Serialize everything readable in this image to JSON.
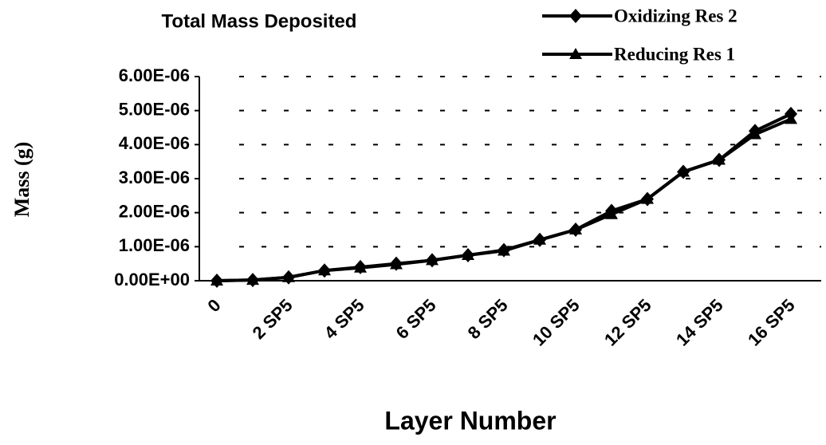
{
  "chart_data": {
    "type": "line",
    "title": "Total Mass Deposited",
    "x_label": "Layer Number",
    "y_label": "Mass (g)",
    "categories": [
      "0",
      null,
      "2 SP5",
      null,
      "4 SP5",
      null,
      "6 SP5",
      null,
      "8 SP5",
      null,
      "10 SP5",
      null,
      "12 SP5",
      null,
      "14 SP5",
      null,
      "16 SP5"
    ],
    "series": [
      {
        "name": "Oxidizing Res 2",
        "color": "#000000",
        "marker": "diamond",
        "values": [
          0,
          2e-08,
          1e-07,
          3e-07,
          4e-07,
          5e-07,
          6e-07,
          7.5e-07,
          9e-07,
          1.2e-06,
          1.5e-06,
          2.05e-06,
          2.4e-06,
          3.2e-06,
          3.55e-06,
          4.4e-06,
          4.9e-06
        ]
      },
      {
        "name": "Reducing Res 1",
        "color": "#000000",
        "marker": "triangle",
        "values": [
          0,
          2e-08,
          1e-07,
          3e-07,
          3.8e-07,
          4.8e-07,
          6e-07,
          7.5e-07,
          8.8e-07,
          1.2e-06,
          1.5e-06,
          1.95e-06,
          2.4e-06,
          3.2e-06,
          3.55e-06,
          4.3e-06,
          4.75e-06
        ]
      }
    ],
    "ylim": [
      0,
      6e-06
    ],
    "yticks": [
      {
        "value": 0,
        "label": "0.00E+00"
      },
      {
        "value": 1e-06,
        "label": "1.00E-06"
      },
      {
        "value": 2e-06,
        "label": "2.00E-06"
      },
      {
        "value": 3e-06,
        "label": "3.00E-06"
      },
      {
        "value": 4e-06,
        "label": "4.00E-06"
      },
      {
        "value": 5e-06,
        "label": "5.00E-06"
      },
      {
        "value": 6e-06,
        "label": "6.00E-06"
      }
    ],
    "grid": true,
    "legend": "top-right"
  }
}
